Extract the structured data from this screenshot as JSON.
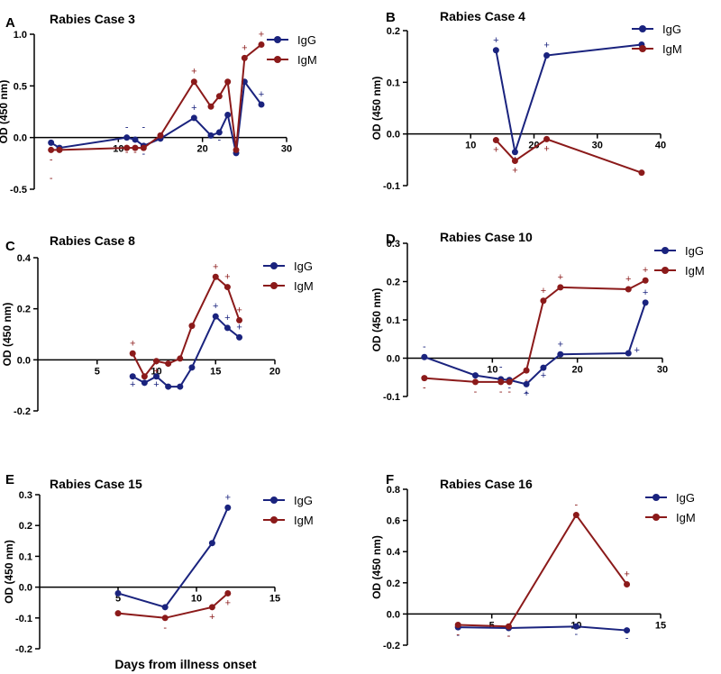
{
  "colors": {
    "IgG": "#1a237e",
    "IgM": "#8b1a1a",
    "axis": "#000000"
  },
  "common_xlabel": "Days from illness onset",
  "chart_data": [
    {
      "panel": "A",
      "type": "line",
      "title": "Rabies Case 3",
      "ylabel": "OD (450 nm)",
      "xlim": [
        0,
        30
      ],
      "ylim": [
        -0.5,
        1.0
      ],
      "xticks": [
        10,
        20,
        30
      ],
      "xtick_labels": [
        "10",
        "20",
        "30"
      ],
      "yticks": [
        -0.5,
        0.0,
        0.5,
        1.0
      ],
      "ytick_labels": [
        "-0.5",
        "0.0",
        "0.5",
        "1.0"
      ],
      "legend": [
        "IgG",
        "IgM"
      ],
      "series": [
        {
          "name": "IgG",
          "x": [
            2,
            3,
            11,
            12,
            13,
            15,
            19,
            21,
            22,
            23,
            24,
            25,
            27
          ],
          "y": [
            -0.05,
            -0.1,
            0.0,
            -0.02,
            -0.08,
            -0.01,
            0.19,
            0.02,
            0.05,
            0.22,
            -0.15,
            0.54,
            0.32
          ],
          "signs": [
            "-",
            "",
            "-",
            "-",
            "-",
            "",
            "+",
            "",
            "",
            "",
            "",
            "",
            "+"
          ]
        },
        {
          "name": "IgM",
          "x": [
            2,
            3,
            11,
            12,
            13,
            15,
            19,
            21,
            22,
            23,
            24,
            25,
            27
          ],
          "y": [
            -0.12,
            -0.12,
            -0.1,
            -0.1,
            -0.1,
            0.02,
            0.54,
            0.3,
            0.4,
            0.54,
            -0.12,
            0.77,
            0.9
          ],
          "signs": [
            "-",
            "",
            "",
            "",
            "",
            "",
            "+",
            "",
            "",
            "",
            "",
            "+",
            "+"
          ]
        }
      ],
      "extra_signs": [
        {
          "x": 2,
          "y": -0.42,
          "text": "-",
          "series": "IgM"
        },
        {
          "x": 11,
          "y": -0.17,
          "text": "-",
          "series": "IgM"
        },
        {
          "x": 12,
          "y": -0.17,
          "text": "-",
          "series": "IgM"
        },
        {
          "x": 13,
          "y": 0.07,
          "text": "-",
          "series": "IgG"
        },
        {
          "x": 22,
          "y": -0.05,
          "text": "-",
          "series": "IgG"
        },
        {
          "x": 24,
          "y": -0.2,
          "text": "-",
          "series": "IgG"
        }
      ]
    },
    {
      "panel": "B",
      "type": "line",
      "title": "Rabies Case 4",
      "ylabel": "OD (450 nm)",
      "xlim": [
        0,
        40
      ],
      "ylim": [
        -0.1,
        0.2
      ],
      "xticks": [
        10,
        20,
        30,
        40
      ],
      "xtick_labels": [
        "10",
        "20",
        "30",
        "40"
      ],
      "yticks": [
        -0.1,
        0.0,
        0.1,
        0.2
      ],
      "ytick_labels": [
        "-0.1",
        "0.0",
        "0.1",
        "0.2"
      ],
      "legend": [
        "IgG",
        "IgM"
      ],
      "series": [
        {
          "name": "IgG",
          "x": [
            14,
            17,
            22,
            37
          ],
          "y": [
            0.162,
            -0.035,
            0.152,
            0.173
          ],
          "signs": [
            "+",
            "+",
            "+",
            ""
          ]
        },
        {
          "name": "IgM",
          "x": [
            14,
            17,
            22,
            37
          ],
          "y": [
            -0.012,
            -0.052,
            -0.01,
            -0.075
          ],
          "signs": [
            "+",
            "+",
            "+",
            ""
          ]
        }
      ],
      "extra_signs": []
    },
    {
      "panel": "C",
      "type": "line",
      "title": "Rabies Case 8",
      "ylabel": "OD (450 nm)",
      "xlim": [
        0,
        20
      ],
      "ylim": [
        -0.2,
        0.4
      ],
      "xticks": [
        5,
        10,
        15,
        20
      ],
      "xtick_labels": [
        "5",
        "10",
        "15",
        "20"
      ],
      "yticks": [
        -0.2,
        0.0,
        0.2,
        0.4
      ],
      "ytick_labels": [
        "-0.2",
        "0.0",
        "0.2",
        "0.4"
      ],
      "legend": [
        "IgG",
        "IgM"
      ],
      "series": [
        {
          "name": "IgG",
          "x": [
            8,
            9,
            10,
            11,
            12,
            13,
            15,
            16,
            17
          ],
          "y": [
            -0.065,
            -0.09,
            -0.065,
            -0.105,
            -0.105,
            -0.03,
            0.17,
            0.125,
            0.088
          ],
          "signs": [
            "+",
            "",
            "+",
            "",
            "",
            "",
            "+",
            "+",
            "+"
          ]
        },
        {
          "name": "IgM",
          "x": [
            8,
            9,
            10,
            11,
            12,
            13,
            15,
            16,
            17
          ],
          "y": [
            0.025,
            -0.065,
            -0.005,
            -0.015,
            0.005,
            0.133,
            0.325,
            0.285,
            0.155
          ],
          "signs": [
            "+",
            "",
            "+",
            "",
            "",
            "",
            "+",
            "+",
            "+"
          ]
        }
      ],
      "extra_signs": []
    },
    {
      "panel": "D",
      "type": "line",
      "title": "Rabies Case 10",
      "ylabel": "OD (450 nm)",
      "xlim": [
        0,
        30
      ],
      "ylim": [
        -0.1,
        0.3
      ],
      "xticks": [
        10,
        20,
        30
      ],
      "xtick_labels": [
        "10",
        "20",
        "30"
      ],
      "yticks": [
        -0.1,
        0.0,
        0.1,
        0.2,
        0.3
      ],
      "ytick_labels": [
        "-0.1",
        "0.0",
        "0.1",
        "0.2",
        "0.3"
      ],
      "legend": [
        "IgG",
        "IgM"
      ],
      "series": [
        {
          "name": "IgG",
          "x": [
            2,
            8,
            11,
            12,
            14,
            16,
            18,
            26,
            28
          ],
          "y": [
            0.003,
            -0.045,
            -0.055,
            -0.057,
            -0.068,
            -0.025,
            0.01,
            0.013,
            0.145
          ],
          "signs": [
            "-",
            "-",
            "",
            "-",
            "-",
            "+",
            "+",
            "",
            "+"
          ]
        },
        {
          "name": "IgM",
          "x": [
            2,
            8,
            11,
            12,
            14,
            16,
            18,
            26,
            28
          ],
          "y": [
            -0.052,
            -0.062,
            -0.062,
            -0.062,
            -0.032,
            0.15,
            0.185,
            0.18,
            0.203
          ],
          "signs": [
            "-",
            "-",
            "-",
            "-",
            "-",
            "+",
            "+",
            "+",
            "+"
          ]
        }
      ],
      "extra_signs": [
        {
          "x": 11,
          "y": -0.03,
          "text": "-",
          "series": "IgG"
        },
        {
          "x": 14,
          "y": -0.1,
          "text": "+",
          "series": "IgG"
        },
        {
          "x": 27,
          "y": 0.013,
          "text": "+",
          "series": "IgG"
        }
      ]
    },
    {
      "panel": "E",
      "type": "line",
      "title": "Rabies Case 15",
      "ylabel": "OD (450 nm)",
      "xlim": [
        0,
        15
      ],
      "ylim": [
        -0.2,
        0.3
      ],
      "xticks": [
        5,
        10,
        15
      ],
      "xtick_labels": [
        "5",
        "10",
        "15"
      ],
      "yticks": [
        -0.2,
        -0.1,
        0.0,
        0.1,
        0.2,
        0.3
      ],
      "ytick_labels": [
        "-0.2",
        "-0.1",
        "0.0",
        "0.1",
        "0.2",
        "0.3"
      ],
      "legend": [
        "IgG",
        "IgM"
      ],
      "series": [
        {
          "name": "IgG",
          "x": [
            5,
            8,
            11,
            12
          ],
          "y": [
            -0.02,
            -0.065,
            0.143,
            0.258
          ],
          "signs": [
            "",
            "",
            "",
            "+"
          ]
        },
        {
          "name": "IgM",
          "x": [
            5,
            8,
            11,
            12
          ],
          "y": [
            -0.085,
            -0.1,
            -0.065,
            -0.02
          ],
          "signs": [
            "",
            "-",
            "+",
            "+"
          ]
        }
      ],
      "extra_signs": []
    },
    {
      "panel": "F",
      "type": "line",
      "title": "Rabies Case 16",
      "ylabel": "OD (450 nm)",
      "xlim": [
        0,
        15
      ],
      "ylim": [
        -0.2,
        0.8
      ],
      "xticks": [
        5,
        10,
        15
      ],
      "xtick_labels": [
        "5",
        "10",
        "15"
      ],
      "yticks": [
        -0.2,
        0.0,
        0.2,
        0.4,
        0.6,
        0.8
      ],
      "ytick_labels": [
        "-0.2",
        "0.0",
        "0.2",
        "0.4",
        "0.6",
        "0.8"
      ],
      "legend": [
        "IgG",
        "IgM"
      ],
      "series": [
        {
          "name": "IgG",
          "x": [
            3,
            6,
            10,
            13
          ],
          "y": [
            -0.085,
            -0.09,
            -0.08,
            -0.105
          ],
          "signs": [
            "-",
            "-",
            "-",
            "-"
          ]
        },
        {
          "name": "IgM",
          "x": [
            3,
            6,
            10,
            13
          ],
          "y": [
            -0.07,
            -0.08,
            0.635,
            0.19
          ],
          "signs": [
            "-",
            "-",
            "-",
            "+"
          ]
        }
      ],
      "extra_signs": []
    }
  ]
}
